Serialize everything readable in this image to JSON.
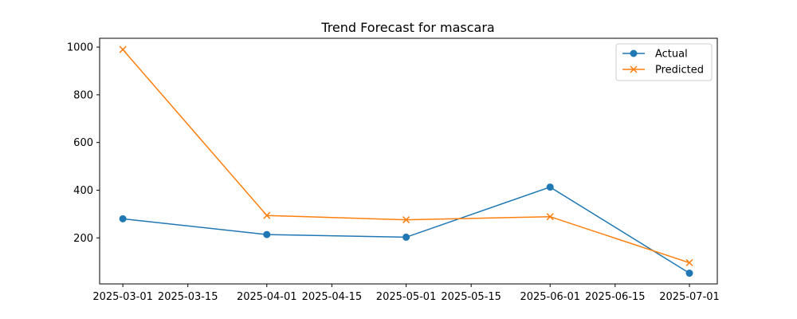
{
  "chart_data": {
    "type": "line",
    "title": "Trend Forecast for mascara",
    "xlabel": "",
    "ylabel": "",
    "x_ticks": [
      "2025-03-01",
      "2025-03-15",
      "2025-04-01",
      "2025-04-15",
      "2025-05-01",
      "2025-05-15",
      "2025-06-01",
      "2025-06-15",
      "2025-07-01"
    ],
    "y_ticks": [
      200,
      400,
      600,
      800,
      1000
    ],
    "ylim": [
      7,
      1037
    ],
    "xlim": [
      "2025-02-24",
      "2025-07-07"
    ],
    "grid": false,
    "legend_position": "top-right",
    "x": [
      "2025-03-01",
      "2025-04-01",
      "2025-05-01",
      "2025-06-01",
      "2025-07-01"
    ],
    "series": [
      {
        "name": "Actual",
        "marker": "circle",
        "color": "#1f77b4",
        "values": [
          280,
          214,
          203,
          413,
          52
        ]
      },
      {
        "name": "Predicted",
        "marker": "x",
        "color": "#ff7f0e",
        "values": [
          990,
          294,
          276,
          289,
          96
        ]
      }
    ]
  }
}
